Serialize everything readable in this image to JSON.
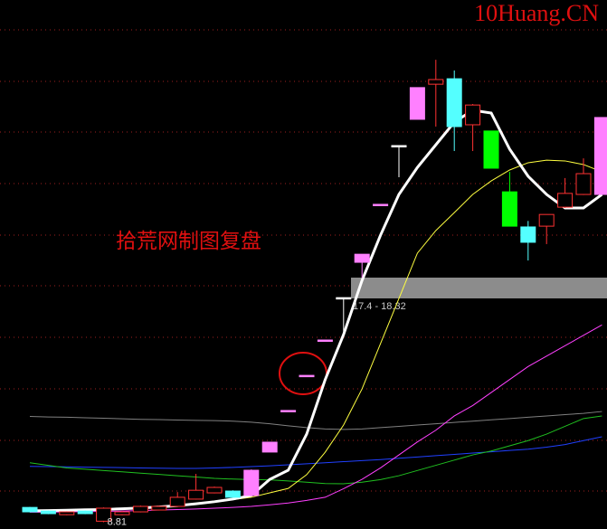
{
  "chart_data": {
    "type": "candlestick",
    "watermark": "10Huang.CN",
    "annotation": "拾荒网制图复盘",
    "crosshair_label": "17.4  - 18.32",
    "ylim": [
      8.55,
      28.9
    ],
    "categories": [
      null,
      null,
      null,
      null,
      null,
      null,
      null,
      null,
      null,
      null,
      null,
      null,
      null,
      null,
      null,
      null,
      null,
      null,
      null,
      null,
      null,
      null,
      null,
      null,
      null,
      null,
      null,
      null,
      null,
      null,
      null,
      null
    ],
    "open": [
      9.38,
      9.24,
      9.1,
      9.24,
      8.85,
      9.1,
      9.21,
      9.28,
      9.42,
      9.7,
      9.94,
      10.01,
      9.84,
      11.51,
      13.11,
      14.46,
      15.82,
      17.45,
      18.81,
      21.04,
      23.3,
      24.31,
      25.66,
      25.87,
      24.1,
      23.86,
      21.52,
      20.17,
      20.2,
      20.93,
      21.42,
      21.42
    ],
    "close": [
      9.21,
      9.14,
      9.21,
      9.14,
      9.35,
      9.21,
      9.42,
      9.42,
      9.77,
      10.04,
      10.15,
      9.77,
      10.81,
      11.89,
      13.11,
      14.46,
      15.82,
      17.45,
      19.12,
      21.04,
      23.3,
      25.53,
      25.84,
      24.03,
      24.86,
      22.43,
      20.2,
      19.58,
      20.65,
      21.46,
      22.22,
      24.38
    ],
    "high": [
      9.4,
      9.26,
      9.23,
      9.26,
      9.38,
      9.24,
      9.45,
      9.45,
      9.97,
      10.67,
      10.18,
      10.04,
      10.84,
      11.89,
      13.11,
      14.46,
      15.82,
      17.45,
      19.12,
      21.04,
      23.3,
      25.53,
      26.6,
      26.19,
      24.9,
      23.86,
      22.29,
      20.4,
      20.65,
      22.05,
      22.81,
      24.38
    ],
    "low": [
      9.19,
      9.12,
      9.08,
      9.12,
      8.81,
      9.08,
      9.19,
      9.26,
      9.4,
      9.68,
      9.92,
      9.75,
      9.8,
      11.51,
      13.11,
      14.46,
      15.82,
      15.96,
      18.22,
      21.04,
      22.08,
      24.31,
      24.03,
      23.09,
      23.09,
      22.43,
      20.2,
      18.88,
      19.51,
      20.9,
      21.4,
      21.4
    ],
    "colors": [
      "#54ffff",
      "#54ffff",
      "#ff3232",
      "#54ffff",
      "#ff3232",
      "#ff3232",
      "#ff3232",
      "#ff3232",
      "#ff3232",
      "#ff3232",
      "#ff3232",
      "#54ffff",
      "#ff80ff",
      "#ff80ff",
      "#ff80ff",
      "#ff80ff",
      "#ff80ff",
      "#ffffff",
      "#ff80ff",
      "#ff80ff",
      "#ffffff",
      "#ff80ff",
      "#ff3232",
      "#54ffff",
      "#ff3232",
      "#00ff00",
      "#00ff00",
      "#54ffff",
      "#ff3232",
      "#ff3232",
      "#ff3232",
      "#ff80ff"
    ],
    "hollow_color": "#ff3232",
    "low_label_index": 4,
    "lines": [
      {
        "color": "#808080",
        "width": 1,
        "values": [
          12.88,
          12.86,
          12.85,
          12.83,
          12.81,
          12.79,
          12.77,
          12.76,
          12.74,
          12.73,
          12.72,
          12.7,
          12.66,
          12.6,
          12.52,
          12.45,
          12.4,
          12.38,
          12.4,
          12.45,
          12.5,
          12.55,
          12.6,
          12.65,
          12.7,
          12.75,
          12.8,
          12.85,
          12.9,
          12.95,
          13.0,
          13.07
        ]
      },
      {
        "color": "#2040ff",
        "width": 1,
        "values": [
          10.96,
          10.95,
          10.94,
          10.93,
          10.92,
          10.91,
          10.9,
          10.89,
          10.88,
          10.88,
          10.9,
          10.92,
          10.95,
          10.98,
          11.02,
          11.06,
          11.1,
          11.14,
          11.18,
          11.22,
          11.27,
          11.32,
          11.37,
          11.42,
          11.47,
          11.52,
          11.57,
          11.62,
          11.7,
          11.8,
          11.95,
          12.1
        ]
      },
      {
        "color": "#20c020",
        "width": 1,
        "values": [
          11.1,
          11.0,
          10.9,
          10.85,
          10.8,
          10.75,
          10.7,
          10.65,
          10.6,
          10.55,
          10.5,
          10.47,
          10.45,
          10.44,
          10.4,
          10.35,
          10.3,
          10.29,
          10.35,
          10.45,
          10.6,
          10.8,
          11.0,
          11.2,
          11.4,
          11.55,
          11.75,
          11.95,
          12.2,
          12.5,
          12.8,
          12.9
        ]
      },
      {
        "color": "#ff40ff",
        "width": 1,
        "values": [
          9.2,
          9.2,
          9.21,
          9.22,
          9.23,
          9.24,
          9.26,
          9.28,
          9.3,
          9.32,
          9.35,
          9.38,
          9.42,
          9.48,
          9.55,
          9.65,
          9.77,
          10.1,
          10.46,
          10.9,
          11.4,
          11.9,
          12.35,
          12.9,
          13.3,
          13.8,
          14.3,
          14.8,
          15.2,
          15.6,
          16.0,
          16.4
        ]
      },
      {
        "color": "#ffff40",
        "width": 1,
        "values": [
          9.24,
          9.25,
          9.27,
          9.28,
          9.3,
          9.33,
          9.36,
          9.4,
          9.45,
          9.52,
          9.6,
          9.68,
          9.77,
          9.94,
          10.11,
          10.64,
          11.5,
          12.55,
          13.94,
          15.68,
          17.42,
          19.16,
          20.03,
          20.72,
          21.42,
          21.94,
          22.36,
          22.64,
          22.74,
          22.71,
          22.57,
          22.29
        ]
      },
      {
        "color": "#ffffff",
        "width": 3,
        "values": [
          9.25,
          9.26,
          9.27,
          9.29,
          9.3,
          9.33,
          9.36,
          9.4,
          9.45,
          9.52,
          9.6,
          9.7,
          9.84,
          10.46,
          10.81,
          12.2,
          14.29,
          16.03,
          18.11,
          19.85,
          21.42,
          22.46,
          23.33,
          24.2,
          24.66,
          24.55,
          23.16,
          22.12,
          21.42,
          20.9,
          20.9,
          21.42
        ]
      }
    ]
  }
}
